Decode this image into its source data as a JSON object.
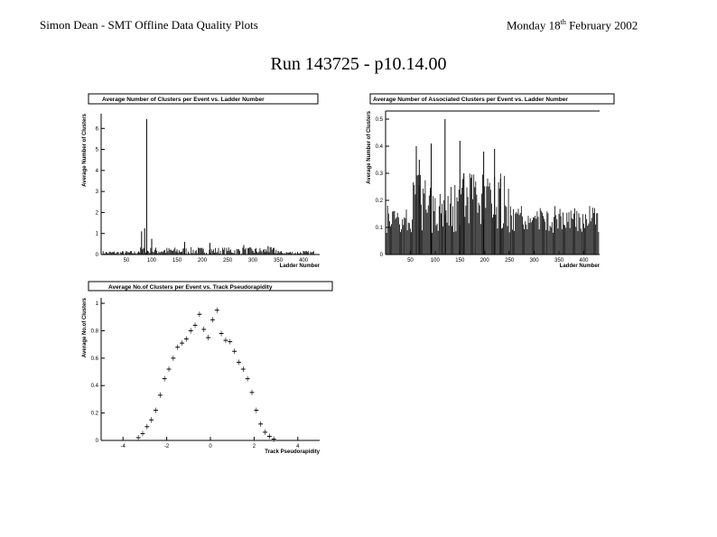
{
  "header": {
    "author": "Simon Dean - SMT Offline Data Quality Plots",
    "date_day": "Monday 18",
    "date_sup": "th",
    "date_rest": " February 2002"
  },
  "run_title": "Run 143725 - p10.14.00",
  "chart_data": [
    {
      "type": "bar",
      "title": "Average Number of Clusters per Event vs. Ladder Number",
      "xlabel": "Ladder Number",
      "ylabel": "Average Number of Clusters",
      "xlim": [
        0,
        432
      ],
      "ylim": [
        0,
        6.7
      ],
      "xticks": [
        50,
        100,
        150,
        200,
        250,
        300,
        350,
        400
      ],
      "yticks": [
        0,
        1,
        2,
        3,
        4,
        5,
        6
      ],
      "peaks": [
        {
          "x": 90,
          "y": 6.45
        },
        {
          "x": 80,
          "y": 1.1
        },
        {
          "x": 86,
          "y": 1.25
        },
        {
          "x": 100,
          "y": 0.75
        },
        {
          "x": 165,
          "y": 0.6
        },
        {
          "x": 215,
          "y": 0.55
        },
        {
          "x": 282,
          "y": 0.45
        },
        {
          "x": 330,
          "y": 0.4
        }
      ],
      "baseline": 0.22
    },
    {
      "type": "bar",
      "title": "Average Number of Associated Clusters per Event vs. Ladder Number",
      "xlabel": "Ladder Number",
      "ylabel": "Average Number of Clusters",
      "xlim": [
        0,
        432
      ],
      "ylim": [
        0,
        0.53
      ],
      "xticks": [
        50,
        100,
        150,
        200,
        250,
        300,
        350,
        400
      ],
      "yticks": [
        0,
        0.1,
        0.2,
        0.3,
        0.4,
        0.5
      ],
      "peaks": [
        {
          "x": 120,
          "y": 0.5
        },
        {
          "x": 62,
          "y": 0.4
        },
        {
          "x": 68,
          "y": 0.35
        },
        {
          "x": 92,
          "y": 0.41
        },
        {
          "x": 150,
          "y": 0.42
        },
        {
          "x": 158,
          "y": 0.3
        },
        {
          "x": 198,
          "y": 0.38
        },
        {
          "x": 220,
          "y": 0.39
        },
        {
          "x": 232,
          "y": 0.28
        }
      ],
      "baseline": 0.08
    },
    {
      "type": "line",
      "title": "Average No.of Clusters per Event vs. Track Pseudorapidity",
      "xlabel": "Track Pseudorapidity",
      "ylabel": "Average No.of Clusters",
      "xlim": [
        -5,
        5
      ],
      "ylim": [
        0,
        1.04
      ],
      "xticks": [
        -4,
        -2,
        0,
        2,
        4
      ],
      "yticks": [
        0,
        0.2,
        0.4,
        0.6,
        0.8,
        1
      ],
      "x": [
        -3.9,
        -3.7,
        -3.5,
        -3.3,
        -3.1,
        -2.9,
        -2.7,
        -2.5,
        -2.3,
        -2.1,
        -1.9,
        -1.7,
        -1.5,
        -1.3,
        -1.1,
        -0.9,
        -0.7,
        -0.5,
        -0.3,
        -0.1,
        0.1,
        0.3,
        0.5,
        0.7,
        0.9,
        1.1,
        1.3,
        1.5,
        1.7,
        1.9,
        2.1,
        2.3,
        2.5,
        2.7,
        2.9,
        3.1,
        3.3
      ],
      "y": [
        0,
        0,
        0,
        0.02,
        0.05,
        0.1,
        0.15,
        0.22,
        0.33,
        0.45,
        0.52,
        0.6,
        0.68,
        0.71,
        0.74,
        0.8,
        0.84,
        0.92,
        0.81,
        0.75,
        0.88,
        0.95,
        0.78,
        0.73,
        0.72,
        0.65,
        0.57,
        0.52,
        0.45,
        0.35,
        0.22,
        0.12,
        0.06,
        0.03,
        0.01,
        0,
        0
      ]
    }
  ]
}
